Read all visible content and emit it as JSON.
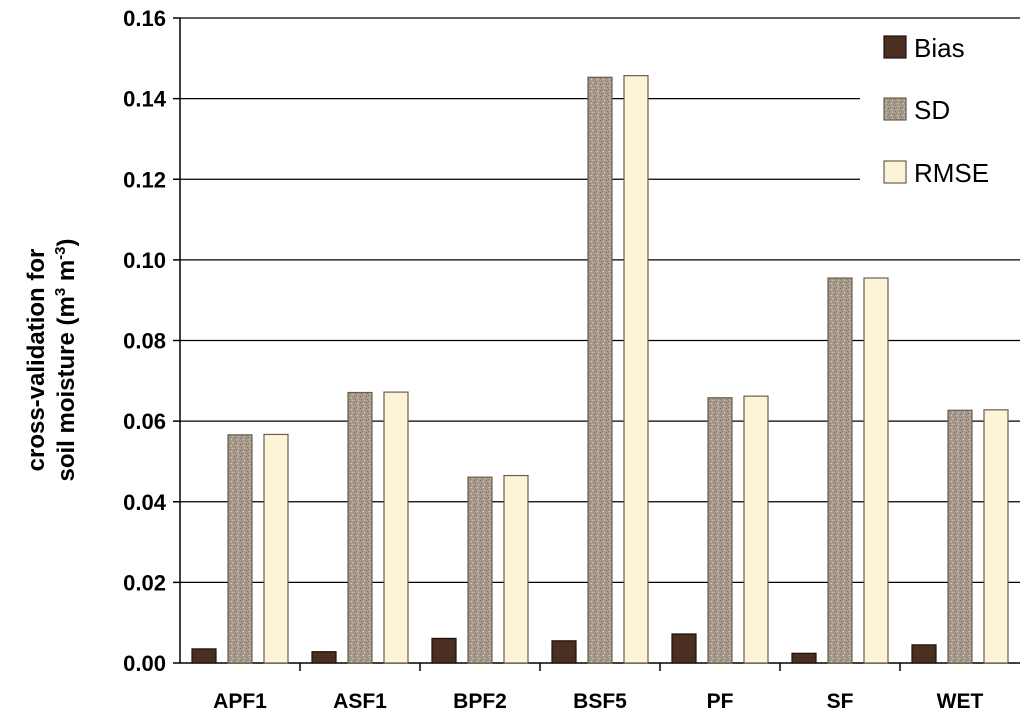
{
  "chart_data": {
    "type": "bar",
    "title": "",
    "xlabel": "",
    "ylabel_line1": "cross-validation for",
    "ylabel_line2_prefix": "soil moisture (m",
    "ylabel_line2_sup1": "3",
    "ylabel_line2_mid": " m",
    "ylabel_line2_sup2": "-3",
    "ylabel_line2_suffix": ")",
    "ylim": [
      0,
      0.16
    ],
    "yticks": [
      "0.00",
      "0.02",
      "0.04",
      "0.06",
      "0.08",
      "0.10",
      "0.12",
      "0.14",
      "0.16"
    ],
    "categories": [
      "APF1",
      "ASF1",
      "BPF2",
      "BSF5",
      "PF",
      "SF",
      "WET"
    ],
    "series": [
      {
        "name": "Bias",
        "color": "#4a2e1f",
        "values": [
          0.0035,
          0.0028,
          0.0061,
          0.0055,
          0.0072,
          0.0024,
          0.0045
        ]
      },
      {
        "name": "SD",
        "color": "#a59888",
        "values": [
          0.0566,
          0.0671,
          0.0461,
          0.1453,
          0.0658,
          0.0955,
          0.0627
        ]
      },
      {
        "name": "RMSE",
        "color": "#fdf3d6",
        "values": [
          0.0567,
          0.0672,
          0.0465,
          0.1457,
          0.0662,
          0.0955,
          0.0628
        ]
      }
    ],
    "grid": true,
    "legend_position": "top-right"
  }
}
